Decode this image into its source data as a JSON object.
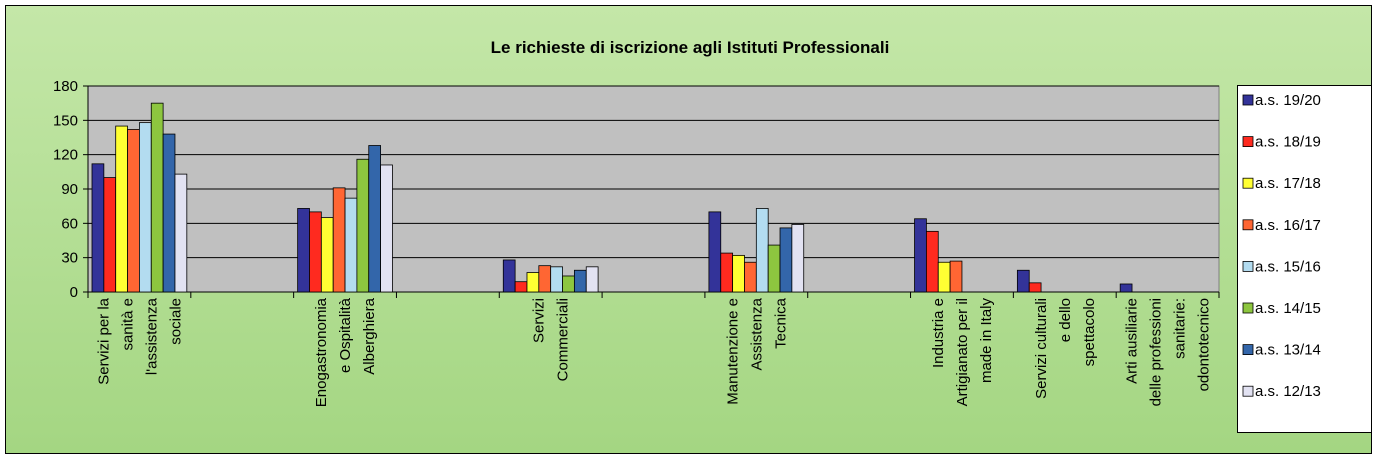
{
  "chart_data": {
    "type": "bar",
    "title": "Le richieste di iscrizione agli Istituti Professionali",
    "categories": [
      "Servizi per la\nsanità e\nl'assistenza\nsociale",
      null,
      "Enogastronomia\ne Ospitalità\nAlberghiera",
      null,
      "Servizi\nCommerciali",
      null,
      "Manutenzione e\nAssistenza\nTecnica",
      null,
      "Industria e\nArtigianato per il\nmade in Italy",
      "Servizi culturali\ne dello\nspettacolo",
      "Arti ausiliarie\ndelle professioni\nsanitarie:\nodontotecnico"
    ],
    "series": [
      {
        "name": "a.s. 19/20",
        "color": "#333399",
        "values": [
          112,
          0,
          73,
          0,
          28,
          0,
          70,
          0,
          64,
          19,
          7
        ]
      },
      {
        "name": "a.s. 18/19",
        "color": "#ff2a1f",
        "values": [
          100,
          0,
          70,
          0,
          9,
          0,
          34,
          0,
          53,
          8,
          0
        ]
      },
      {
        "name": "a.s. 17/18",
        "color": "#ffff33",
        "values": [
          145,
          0,
          65,
          0,
          17,
          0,
          32,
          0,
          26,
          0,
          0
        ]
      },
      {
        "name": "a.s. 16/17",
        "color": "#ff6633",
        "values": [
          142,
          0,
          91,
          0,
          23,
          0,
          26,
          0,
          27,
          0,
          0
        ]
      },
      {
        "name": "a.s. 15/16",
        "color": "#b3dcf0",
        "values": [
          148,
          0,
          82,
          0,
          22,
          0,
          73,
          0,
          0,
          0,
          0
        ]
      },
      {
        "name": "a.s. 14/15",
        "color": "#8dc63f",
        "values": [
          165,
          0,
          116,
          0,
          14,
          0,
          41,
          0,
          0,
          0,
          0
        ]
      },
      {
        "name": "a.s. 13/14",
        "color": "#3366aa",
        "values": [
          138,
          0,
          128,
          0,
          19,
          0,
          56,
          0,
          0,
          0,
          0
        ]
      },
      {
        "name": "a.s. 12/13",
        "color": "#e2e2f2",
        "values": [
          103,
          0,
          111,
          0,
          22,
          0,
          59,
          0,
          0,
          0,
          0
        ]
      }
    ],
    "ylim": [
      0,
      180
    ],
    "yticks": [
      0,
      30,
      60,
      90,
      120,
      150,
      180
    ],
    "grid": true,
    "legend": "right"
  }
}
